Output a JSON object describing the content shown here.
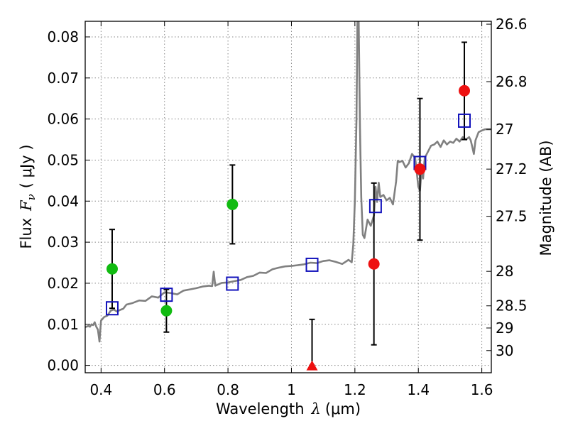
{
  "chart_data": {
    "type": "scatter",
    "xlabel_text": "Wavelength",
    "xlabel_symbol": "λ",
    "xlabel_unit": "(μm)",
    "ylabel_text": "Flux",
    "ylabel_symbol": "F",
    "ylabel_subscript": "ν",
    "ylabel_unit": "( μJy )",
    "ylabel_right": "Magnitude (AB)",
    "xlim": [
      0.35,
      1.63
    ],
    "ylim": [
      -0.0018,
      0.0838
    ],
    "grid": true,
    "x_ticks": [
      {
        "value": 0.4,
        "label": "0.4"
      },
      {
        "value": 0.6,
        "label": "0.6"
      },
      {
        "value": 0.8,
        "label": "0.8"
      },
      {
        "value": 1.0,
        "label": "1"
      },
      {
        "value": 1.2,
        "label": "1.2"
      },
      {
        "value": 1.4,
        "label": "1.4"
      },
      {
        "value": 1.6,
        "label": "1.6"
      }
    ],
    "y_ticks": [
      {
        "value": 0.0,
        "label": "0.00"
      },
      {
        "value": 0.01,
        "label": "0.01"
      },
      {
        "value": 0.02,
        "label": "0.02"
      },
      {
        "value": 0.03,
        "label": "0.03"
      },
      {
        "value": 0.04,
        "label": "0.04"
      },
      {
        "value": 0.05,
        "label": "0.05"
      },
      {
        "value": 0.06,
        "label": "0.06"
      },
      {
        "value": 0.07,
        "label": "0.07"
      },
      {
        "value": 0.08,
        "label": "0.08"
      }
    ],
    "mag_ticks": [
      {
        "flux": 0.0831,
        "label": "26.6"
      },
      {
        "flux": 0.0691,
        "label": "26.8"
      },
      {
        "flux": 0.0575,
        "label": "27"
      },
      {
        "flux": 0.0478,
        "label": "27.2"
      },
      {
        "flux": 0.0363,
        "label": "27.5"
      },
      {
        "flux": 0.0229,
        "label": "28"
      },
      {
        "flux": 0.0145,
        "label": "28.5"
      },
      {
        "flux": 0.0091,
        "label": "29"
      },
      {
        "flux": 0.0036,
        "label": "30"
      }
    ],
    "observed_green": [
      {
        "x": 0.435,
        "y": 0.0235,
        "err_low": 0.0139,
        "err_high": 0.0331
      },
      {
        "x": 0.606,
        "y": 0.0133,
        "err_low": 0.0081,
        "err_high": 0.0185
      },
      {
        "x": 0.814,
        "y": 0.0392,
        "err_low": 0.0296,
        "err_high": 0.0488
      }
    ],
    "observed_red": [
      {
        "x": 1.26,
        "y": 0.0247,
        "err_low": 0.005,
        "err_high": 0.0444
      },
      {
        "x": 1.405,
        "y": 0.0478,
        "err_low": 0.0305,
        "err_high": 0.065
      },
      {
        "x": 1.545,
        "y": 0.0669,
        "err_low": 0.055,
        "err_high": 0.0787
      }
    ],
    "upper_limit": {
      "x": 1.065,
      "y": 0.0,
      "err_high": 0.0112
    },
    "model_boxes": [
      {
        "x": 0.435,
        "y": 0.0139
      },
      {
        "x": 0.606,
        "y": 0.0172
      },
      {
        "x": 0.814,
        "y": 0.0199
      },
      {
        "x": 1.065,
        "y": 0.0245
      },
      {
        "x": 1.265,
        "y": 0.0388
      },
      {
        "x": 1.405,
        "y": 0.0493
      },
      {
        "x": 1.545,
        "y": 0.0596
      }
    ],
    "model_spectrum": [
      [
        0.35,
        0.0093
      ],
      [
        0.36,
        0.0096
      ],
      [
        0.365,
        0.0094
      ],
      [
        0.37,
        0.01
      ],
      [
        0.375,
        0.0098
      ],
      [
        0.38,
        0.0105
      ],
      [
        0.385,
        0.0094
      ],
      [
        0.39,
        0.0087
      ],
      [
        0.395,
        0.0058
      ],
      [
        0.4,
        0.0109
      ],
      [
        0.41,
        0.0118
      ],
      [
        0.42,
        0.0121
      ],
      [
        0.43,
        0.0133
      ],
      [
        0.44,
        0.0136
      ],
      [
        0.45,
        0.0131
      ],
      [
        0.46,
        0.0135
      ],
      [
        0.47,
        0.0138
      ],
      [
        0.48,
        0.0148
      ],
      [
        0.5,
        0.0152
      ],
      [
        0.52,
        0.0158
      ],
      [
        0.54,
        0.0157
      ],
      [
        0.56,
        0.0168
      ],
      [
        0.58,
        0.0165
      ],
      [
        0.6,
        0.0178
      ],
      [
        0.62,
        0.0176
      ],
      [
        0.64,
        0.0173
      ],
      [
        0.66,
        0.0182
      ],
      [
        0.68,
        0.0185
      ],
      [
        0.7,
        0.0188
      ],
      [
        0.72,
        0.0192
      ],
      [
        0.74,
        0.0194
      ],
      [
        0.75,
        0.0193
      ],
      [
        0.755,
        0.0228
      ],
      [
        0.76,
        0.0194
      ],
      [
        0.78,
        0.0201
      ],
      [
        0.8,
        0.0202
      ],
      [
        0.82,
        0.0205
      ],
      [
        0.84,
        0.0208
      ],
      [
        0.86,
        0.0215
      ],
      [
        0.88,
        0.0218
      ],
      [
        0.9,
        0.0226
      ],
      [
        0.92,
        0.0225
      ],
      [
        0.94,
        0.0234
      ],
      [
        0.96,
        0.0238
      ],
      [
        0.98,
        0.0241
      ],
      [
        1.0,
        0.0242
      ],
      [
        1.02,
        0.0244
      ],
      [
        1.04,
        0.0246
      ],
      [
        1.06,
        0.025
      ],
      [
        1.08,
        0.0249
      ],
      [
        1.1,
        0.0254
      ],
      [
        1.12,
        0.0256
      ],
      [
        1.14,
        0.0252
      ],
      [
        1.16,
        0.0247
      ],
      [
        1.18,
        0.0257
      ],
      [
        1.19,
        0.0251
      ],
      [
        1.195,
        0.0295
      ],
      [
        1.2,
        0.04
      ],
      [
        1.205,
        0.06
      ],
      [
        1.208,
        0.0838
      ],
      [
        1.212,
        0.0838
      ],
      [
        1.216,
        0.058
      ],
      [
        1.22,
        0.041
      ],
      [
        1.225,
        0.0318
      ],
      [
        1.23,
        0.031
      ],
      [
        1.24,
        0.0355
      ],
      [
        1.25,
        0.034
      ],
      [
        1.26,
        0.0365
      ],
      [
        1.265,
        0.0435
      ],
      [
        1.27,
        0.0398
      ],
      [
        1.275,
        0.0445
      ],
      [
        1.28,
        0.041
      ],
      [
        1.29,
        0.0415
      ],
      [
        1.3,
        0.0402
      ],
      [
        1.31,
        0.0408
      ],
      [
        1.32,
        0.0392
      ],
      [
        1.33,
        0.0448
      ],
      [
        1.335,
        0.0498
      ],
      [
        1.34,
        0.0495
      ],
      [
        1.35,
        0.0498
      ],
      [
        1.36,
        0.0482
      ],
      [
        1.37,
        0.0492
      ],
      [
        1.38,
        0.0515
      ],
      [
        1.39,
        0.0505
      ],
      [
        1.4,
        0.0435
      ],
      [
        1.405,
        0.0425
      ],
      [
        1.41,
        0.0475
      ],
      [
        1.415,
        0.0455
      ],
      [
        1.42,
        0.0505
      ],
      [
        1.43,
        0.052
      ],
      [
        1.44,
        0.0535
      ],
      [
        1.45,
        0.0538
      ],
      [
        1.46,
        0.0545
      ],
      [
        1.47,
        0.0532
      ],
      [
        1.48,
        0.0548
      ],
      [
        1.49,
        0.0538
      ],
      [
        1.5,
        0.0545
      ],
      [
        1.51,
        0.0542
      ],
      [
        1.52,
        0.0552
      ],
      [
        1.53,
        0.0545
      ],
      [
        1.54,
        0.0556
      ],
      [
        1.55,
        0.055
      ],
      [
        1.56,
        0.0556
      ],
      [
        1.565,
        0.0548
      ],
      [
        1.57,
        0.0532
      ],
      [
        1.575,
        0.0515
      ],
      [
        1.58,
        0.0548
      ],
      [
        1.59,
        0.0568
      ],
      [
        1.6,
        0.0572
      ],
      [
        1.61,
        0.0575
      ],
      [
        1.63,
        0.0575
      ]
    ]
  },
  "colors": {
    "green": "#11bb11",
    "red": "#ee1111",
    "blue": "#1111bb",
    "spectrum": "#808080",
    "grid": "#888888"
  }
}
